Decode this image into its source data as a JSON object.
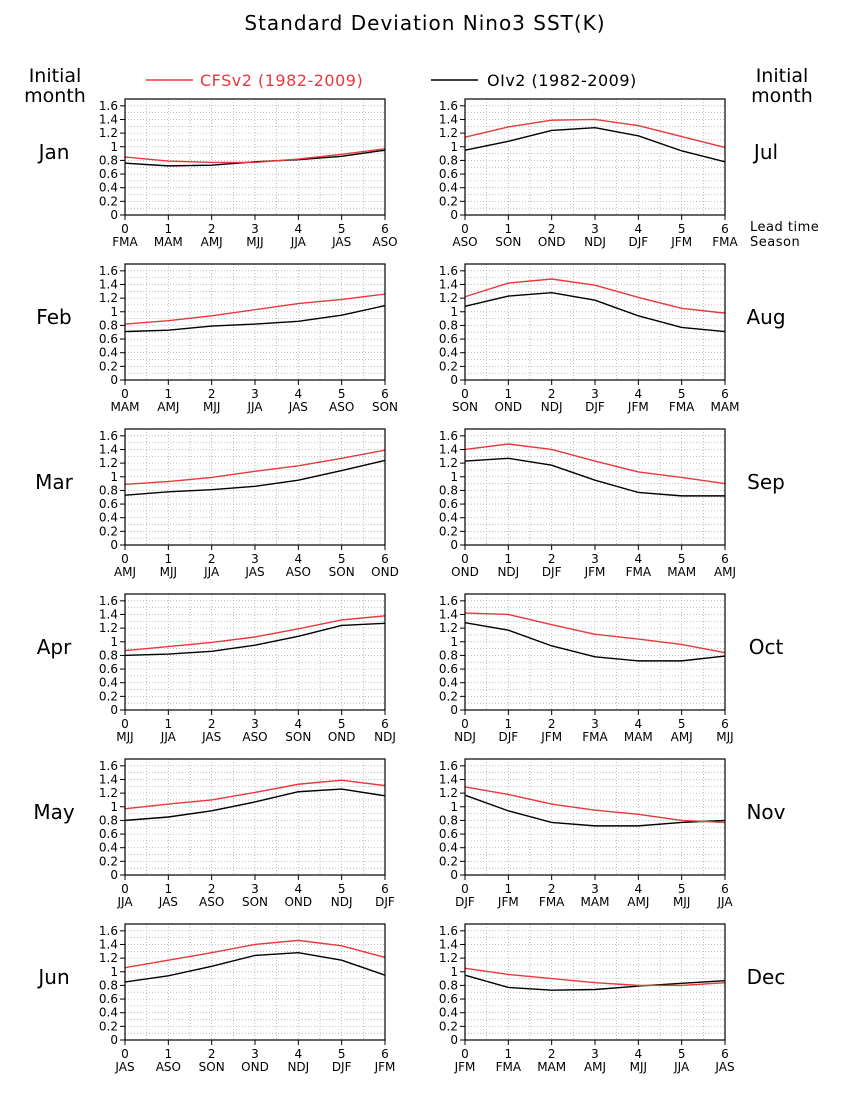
{
  "figure": {
    "title": "Standard Deviation Nino3 SST(K)",
    "left_header": [
      "Initial",
      "month"
    ],
    "right_header": [
      "Initial",
      "month"
    ],
    "lead_label": [
      "Lead time",
      "Season"
    ]
  },
  "chart_data": {
    "type": "line",
    "legend": [
      {
        "name": "CFSv2 (1982-2009)",
        "color": "#e8383d"
      },
      {
        "name": "OIv2 (1982-2009)",
        "color": "#000000"
      }
    ],
    "x": [
      0,
      1,
      2,
      3,
      4,
      5,
      6
    ],
    "ylim": [
      0,
      1.7
    ],
    "yticks": [
      "0",
      "0.2",
      "0.4",
      "0.6",
      "0.8",
      "1",
      "1.2",
      "1.4",
      "1.6"
    ],
    "grid": true,
    "panels": [
      {
        "month": "Jan",
        "seasons": [
          "FMA",
          "MAM",
          "AMJ",
          "MJJ",
          "JJA",
          "JAS",
          "ASO"
        ],
        "cfsv2": [
          0.85,
          0.79,
          0.77,
          0.77,
          0.82,
          0.89,
          0.97
        ],
        "oiv2": [
          0.76,
          0.72,
          0.73,
          0.78,
          0.81,
          0.86,
          0.95
        ]
      },
      {
        "month": "Jul",
        "seasons": [
          "ASO",
          "SON",
          "OND",
          "NDJ",
          "DJF",
          "JFM",
          "FMA"
        ],
        "cfsv2": [
          1.14,
          1.29,
          1.39,
          1.4,
          1.31,
          1.15,
          0.99
        ],
        "oiv2": [
          0.95,
          1.08,
          1.24,
          1.28,
          1.16,
          0.94,
          0.78
        ]
      },
      {
        "month": "Feb",
        "seasons": [
          "MAM",
          "AMJ",
          "MJJ",
          "JJA",
          "JAS",
          "ASO",
          "SON"
        ],
        "cfsv2": [
          0.82,
          0.87,
          0.94,
          1.03,
          1.12,
          1.18,
          1.26
        ],
        "oiv2": [
          0.71,
          0.73,
          0.79,
          0.82,
          0.86,
          0.95,
          1.09
        ]
      },
      {
        "month": "Aug",
        "seasons": [
          "SON",
          "OND",
          "NDJ",
          "DJF",
          "JFM",
          "FMA",
          "MAM"
        ],
        "cfsv2": [
          1.22,
          1.42,
          1.48,
          1.39,
          1.21,
          1.05,
          0.98
        ],
        "oiv2": [
          1.08,
          1.23,
          1.28,
          1.17,
          0.94,
          0.77,
          0.71
        ]
      },
      {
        "month": "Mar",
        "seasons": [
          "AMJ",
          "MJJ",
          "JJA",
          "JAS",
          "ASO",
          "SON",
          "OND"
        ],
        "cfsv2": [
          0.89,
          0.93,
          0.99,
          1.08,
          1.16,
          1.27,
          1.39
        ],
        "oiv2": [
          0.73,
          0.78,
          0.81,
          0.86,
          0.95,
          1.09,
          1.24
        ]
      },
      {
        "month": "Sep",
        "seasons": [
          "OND",
          "NDJ",
          "DJF",
          "JFM",
          "FMA",
          "MAM",
          "AMJ"
        ],
        "cfsv2": [
          1.4,
          1.48,
          1.4,
          1.23,
          1.07,
          0.99,
          0.9
        ],
        "oiv2": [
          1.23,
          1.27,
          1.17,
          0.95,
          0.77,
          0.72,
          0.72
        ]
      },
      {
        "month": "Apr",
        "seasons": [
          "MJJ",
          "JJA",
          "JAS",
          "ASO",
          "SON",
          "OND",
          "NDJ"
        ],
        "cfsv2": [
          0.87,
          0.93,
          0.99,
          1.07,
          1.19,
          1.32,
          1.38
        ],
        "oiv2": [
          0.8,
          0.82,
          0.86,
          0.95,
          1.08,
          1.24,
          1.27
        ]
      },
      {
        "month": "Oct",
        "seasons": [
          "NDJ",
          "DJF",
          "JFM",
          "FMA",
          "MAM",
          "AMJ",
          "MJJ"
        ],
        "cfsv2": [
          1.42,
          1.4,
          1.25,
          1.11,
          1.04,
          0.96,
          0.84
        ],
        "oiv2": [
          1.28,
          1.17,
          0.94,
          0.78,
          0.72,
          0.72,
          0.79
        ]
      },
      {
        "month": "May",
        "seasons": [
          "JJA",
          "JAS",
          "ASO",
          "SON",
          "OND",
          "NDJ",
          "DJF"
        ],
        "cfsv2": [
          0.97,
          1.04,
          1.1,
          1.21,
          1.33,
          1.39,
          1.31
        ],
        "oiv2": [
          0.8,
          0.85,
          0.94,
          1.07,
          1.22,
          1.26,
          1.16
        ]
      },
      {
        "month": "Nov",
        "seasons": [
          "DJF",
          "JFM",
          "FMA",
          "MAM",
          "AMJ",
          "MJJ",
          "JJA"
        ],
        "cfsv2": [
          1.29,
          1.18,
          1.04,
          0.95,
          0.89,
          0.8,
          0.77
        ],
        "oiv2": [
          1.17,
          0.94,
          0.77,
          0.72,
          0.72,
          0.77,
          0.8
        ]
      },
      {
        "month": "Jun",
        "seasons": [
          "JAS",
          "ASO",
          "SON",
          "OND",
          "NDJ",
          "DJF",
          "JFM"
        ],
        "cfsv2": [
          1.06,
          1.17,
          1.28,
          1.4,
          1.46,
          1.38,
          1.21
        ],
        "oiv2": [
          0.85,
          0.94,
          1.08,
          1.24,
          1.28,
          1.17,
          0.95
        ]
      },
      {
        "month": "Dec",
        "seasons": [
          "JFM",
          "FMA",
          "MAM",
          "AMJ",
          "MJJ",
          "JJA",
          "JAS"
        ],
        "cfsv2": [
          1.05,
          0.96,
          0.9,
          0.84,
          0.8,
          0.8,
          0.84
        ],
        "oiv2": [
          0.95,
          0.77,
          0.73,
          0.74,
          0.79,
          0.83,
          0.87
        ]
      }
    ]
  }
}
